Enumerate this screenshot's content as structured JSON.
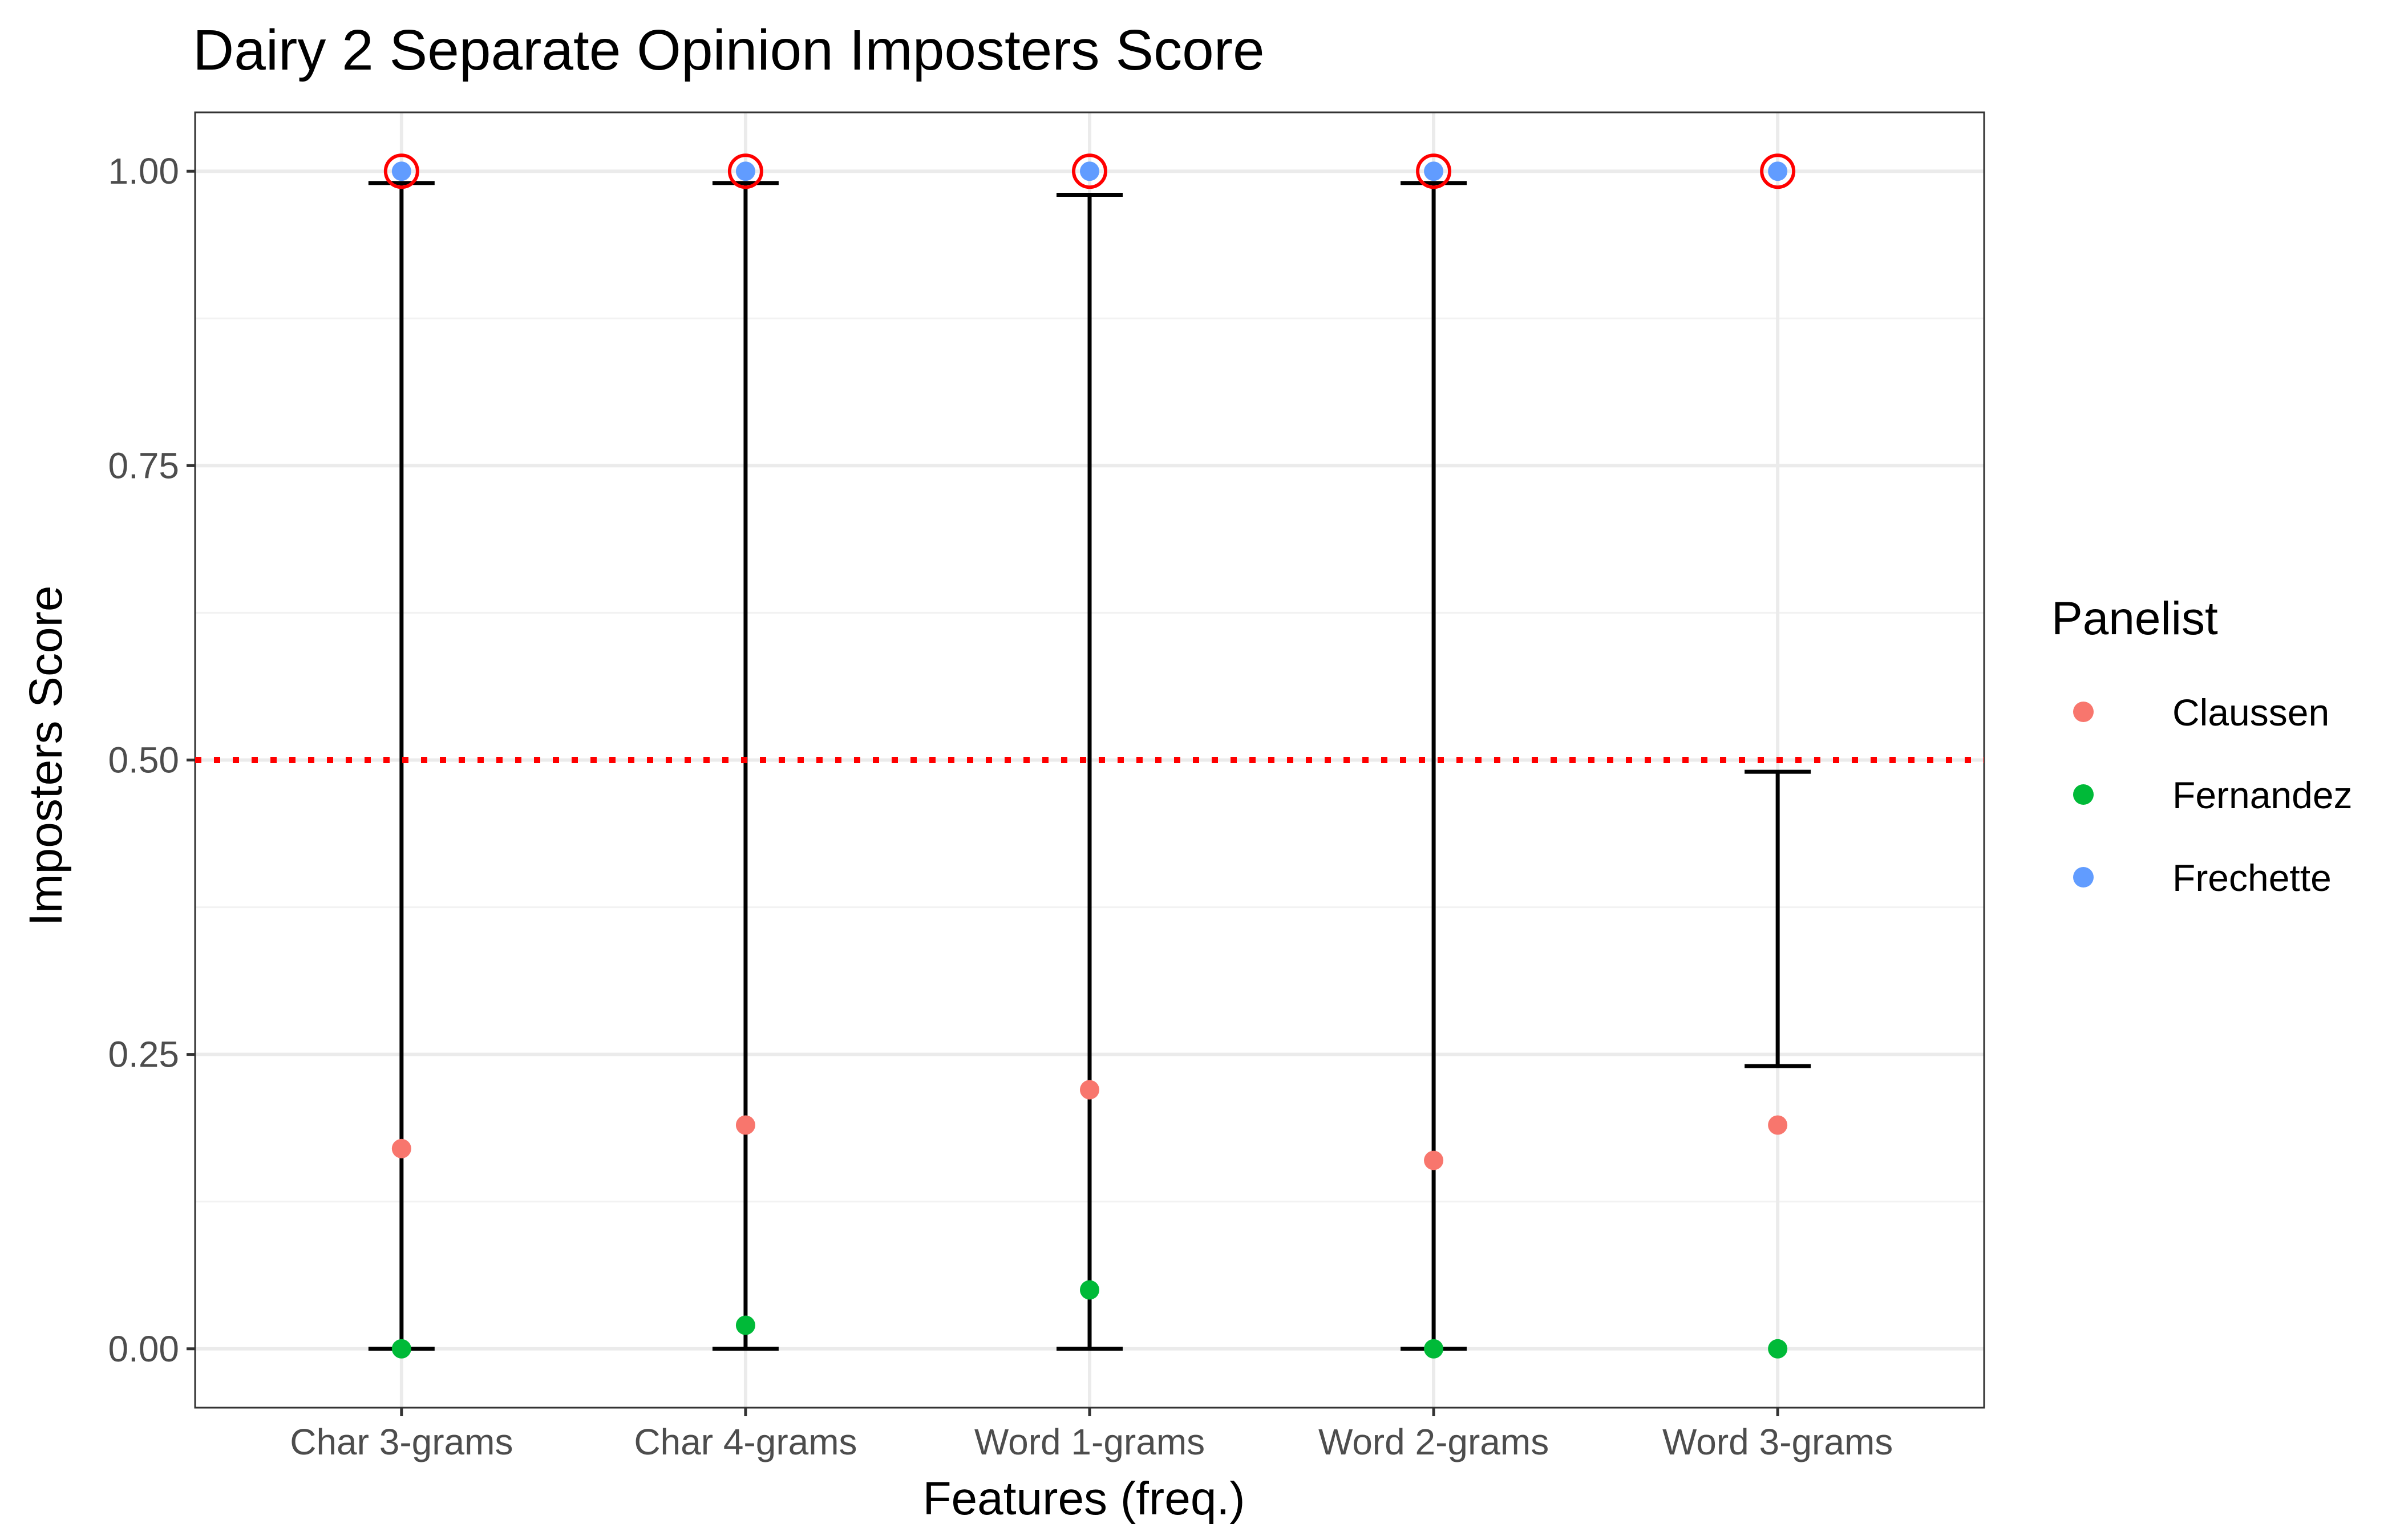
{
  "chart_data": {
    "type": "scatter",
    "title": "Dairy 2 Separate Opinion Imposters Score",
    "xlabel": "Features (freq.)",
    "ylabel": "Imposters Score",
    "categories": [
      "Char 3-grams",
      "Char 4-grams",
      "Word 1-grams",
      "Word 2-grams",
      "Word 3-grams"
    ],
    "ylim": [
      -0.05,
      1.05
    ],
    "yticks": [
      0.0,
      0.25,
      0.5,
      0.75,
      1.0
    ],
    "ytick_labels": [
      "0.00",
      "0.25",
      "0.50",
      "0.75",
      "1.00"
    ],
    "grid": true,
    "legend": {
      "title": "Panelist",
      "position": "right"
    },
    "series": [
      {
        "name": "Claussen",
        "color": "#F8766D",
        "values": [
          0.17,
          0.19,
          0.22,
          0.16,
          0.19
        ]
      },
      {
        "name": "Fernandez",
        "color": "#00BA38",
        "values": [
          0.0,
          0.02,
          0.05,
          0.0,
          0.0
        ]
      },
      {
        "name": "Frechette",
        "color": "#619CFF",
        "values": [
          1.0,
          1.0,
          1.0,
          1.0,
          1.0
        ]
      }
    ],
    "error_bars": [
      {
        "category": "Char 3-grams",
        "low": 0.0,
        "high": 0.99
      },
      {
        "category": "Char 4-grams",
        "low": 0.0,
        "high": 0.99
      },
      {
        "category": "Word 1-grams",
        "low": 0.0,
        "high": 0.98
      },
      {
        "category": "Word 2-grams",
        "low": 0.0,
        "high": 0.99
      },
      {
        "category": "Word 3-grams",
        "low": 0.24,
        "high": 0.49
      }
    ],
    "highlighted_points": {
      "series": "Frechette",
      "marker": "red-open-circle",
      "color": "#FF0000"
    },
    "reference_line": {
      "y": 0.5,
      "style": "dotted",
      "color": "#FF0000"
    }
  }
}
